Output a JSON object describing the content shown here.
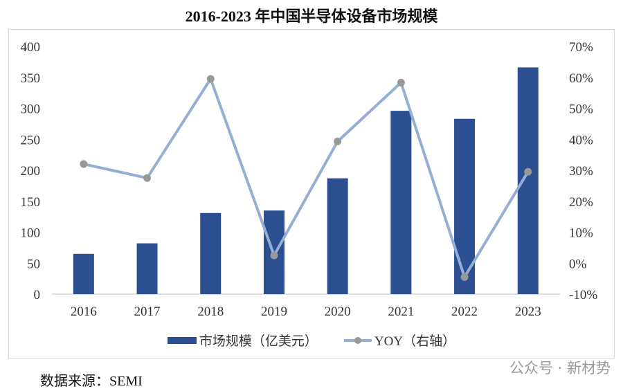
{
  "chart_data": {
    "type": "bar+line",
    "title": "2016-2023 年中国半导体设备市场规模",
    "categories": [
      "2016",
      "2017",
      "2018",
      "2019",
      "2020",
      "2021",
      "2022",
      "2023"
    ],
    "series": [
      {
        "name": "市场规模（亿美元）",
        "type": "bar",
        "axis": "left",
        "color": "#2c4f91",
        "values": [
          65,
          82,
          131,
          135,
          187,
          296,
          283,
          366
        ]
      },
      {
        "name": "YOY（右轴）",
        "type": "line",
        "axis": "right",
        "color": "#94aed4",
        "marker_color": "#999999",
        "values": [
          32,
          27.5,
          59.5,
          2.5,
          39.3,
          58.3,
          -4.5,
          29.5
        ]
      }
    ],
    "left_axis": {
      "ylim": [
        0,
        400
      ],
      "ticks": [
        "0",
        "50",
        "100",
        "150",
        "200",
        "250",
        "300",
        "350",
        "400"
      ]
    },
    "right_axis": {
      "ylim": [
        -10,
        70
      ],
      "ticks": [
        "-10%",
        "0%",
        "10%",
        "20%",
        "30%",
        "40%",
        "50%",
        "60%",
        "70%"
      ]
    },
    "grid": false,
    "legend": "bottom"
  },
  "source": "数据来源：SEMI",
  "watermark": "公众号 · 新材势"
}
